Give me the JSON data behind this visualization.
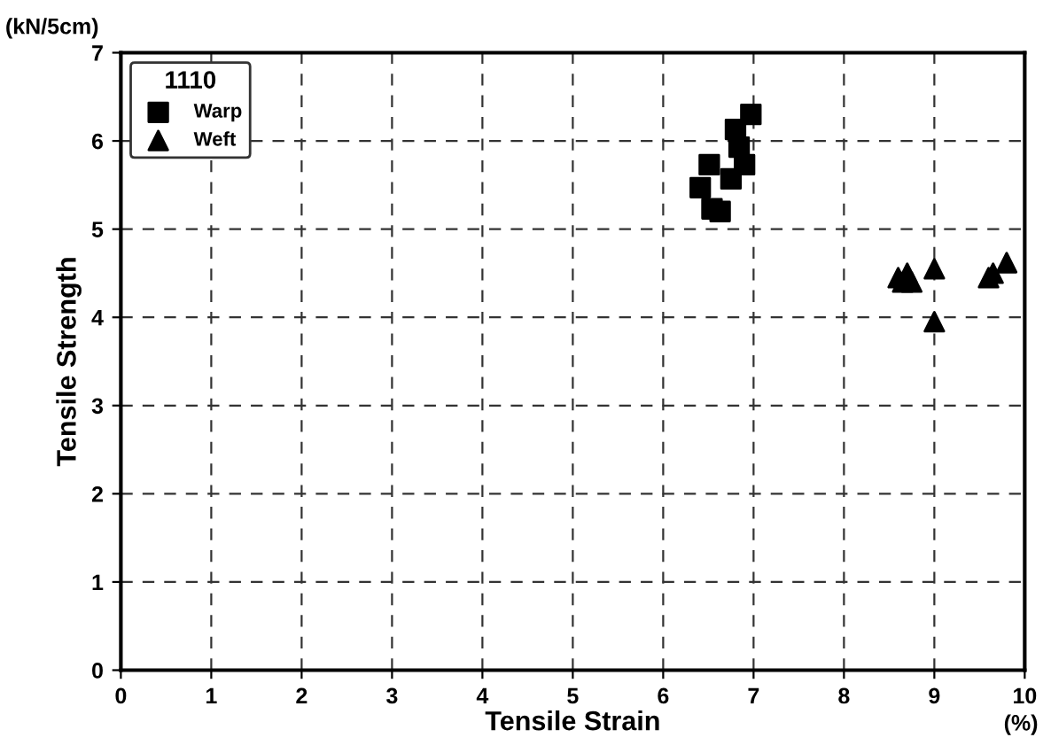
{
  "chart_data": {
    "type": "scatter",
    "xlabel": "Tensile Strain",
    "ylabel": "Tensile Strength",
    "legend_title": "1110",
    "annotations": [
      "(kN/5cm)",
      "(%)"
    ],
    "xlim": [
      0,
      10
    ],
    "ylim": [
      0,
      7
    ],
    "xticks": [
      0,
      1,
      2,
      3,
      4,
      5,
      6,
      7,
      8,
      9,
      10
    ],
    "yticks": [
      0,
      1,
      2,
      3,
      4,
      5,
      6,
      7
    ],
    "grid": true,
    "legend": "top left",
    "series": [
      {
        "name": "Warp",
        "color": "#000000",
        "marker": "square",
        "x": [
          6.97,
          6.8,
          6.84,
          6.51,
          6.9,
          6.75,
          6.41,
          6.63,
          6.54
        ],
        "values": [
          6.3,
          6.13,
          5.93,
          5.73,
          5.73,
          5.57,
          5.47,
          5.2,
          5.23
        ]
      },
      {
        "name": "Weft",
        "color": "#000000",
        "marker": "triangle",
        "x": [
          8.6,
          8.7,
          8.75,
          8.65,
          9.0,
          9.0,
          9.6,
          9.65,
          9.8
        ],
        "values": [
          4.45,
          4.5,
          4.4,
          4.4,
          4.55,
          3.95,
          4.45,
          4.5,
          4.62
        ]
      }
    ]
  }
}
